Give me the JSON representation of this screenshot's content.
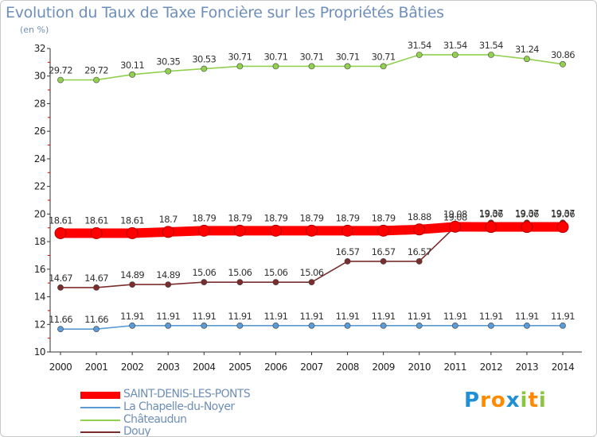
{
  "chart_data": {
    "type": "line",
    "title": "Evolution du Taux de Taxe Foncière sur les Propriétés Bâties",
    "ylabel": "(en %)",
    "xlabel": "",
    "ylim": [
      10,
      32
    ],
    "yticks": [
      "10",
      "12",
      "14",
      "16",
      "18",
      "20",
      "22",
      "24",
      "26",
      "28",
      "30",
      "32"
    ],
    "x": [
      "2000",
      "2001",
      "2002",
      "2003",
      "2004",
      "2005",
      "2006",
      "2007",
      "2008",
      "2009",
      "2010",
      "2011",
      "2012",
      "2013",
      "2014"
    ],
    "series": [
      {
        "name": "SAINT-DENIS-LES-PONTS",
        "color": "#ff0000",
        "values": [
          18.61,
          18.61,
          18.61,
          18.7,
          18.79,
          18.79,
          18.79,
          18.79,
          18.79,
          18.79,
          18.88,
          19.08,
          19.06,
          19.06,
          19.06
        ],
        "labels": [
          "18.61",
          "18.61",
          "18.61",
          "18.7",
          "18.79",
          "18.79",
          "18.79",
          "18.79",
          "18.79",
          "18.79",
          "18.88",
          "19.08",
          "19.06",
          "19.06",
          "19.06"
        ]
      },
      {
        "name": "La Chapelle-du-Noyer",
        "color": "#5b9bd5",
        "values": [
          11.66,
          11.66,
          11.91,
          11.91,
          11.91,
          11.91,
          11.91,
          11.91,
          11.91,
          11.91,
          11.91,
          11.91,
          11.91,
          11.91,
          11.91
        ],
        "labels": [
          "11.66",
          "11.66",
          "11.91",
          "11.91",
          "11.91",
          "11.91",
          "11.91",
          "11.91",
          "11.91",
          "11.91",
          "11.91",
          "11.91",
          "11.91",
          "11.91",
          "11.91"
        ]
      },
      {
        "name": "Châteaudun",
        "color": "#92d050",
        "values": [
          29.72,
          29.72,
          30.11,
          30.35,
          30.53,
          30.71,
          30.71,
          30.71,
          30.71,
          30.71,
          31.54,
          31.54,
          31.54,
          31.24,
          30.86
        ],
        "labels": [
          "29.72",
          "29.72",
          "30.11",
          "30.35",
          "30.53",
          "30.71",
          "30.71",
          "30.71",
          "30.71",
          "30.71",
          "31.54",
          "31.54",
          "31.54",
          "31.24",
          "30.86"
        ]
      },
      {
        "name": "Douy",
        "color": "#7b2c2c",
        "values": [
          14.67,
          14.67,
          14.89,
          14.89,
          15.06,
          15.06,
          15.06,
          15.06,
          16.57,
          16.57,
          16.57,
          19.08,
          19.37,
          19.37,
          19.37
        ],
        "labels": [
          "14.67",
          "14.67",
          "14.89",
          "14.89",
          "15.06",
          "15.06",
          "15.06",
          "15.06",
          "16.57",
          "16.57",
          "16.57",
          "19.08",
          "19.37",
          "19.37",
          "19.37"
        ]
      }
    ],
    "legend_position": "bottom-left",
    "grid": false
  },
  "logo": {
    "text": "Proxiti",
    "letters": [
      {
        "char": "P",
        "color": "#1f8fd6"
      },
      {
        "char": "r",
        "color": "#ff8a00"
      },
      {
        "char": "o",
        "color": "#ff8a00"
      },
      {
        "char": "x",
        "color": "#1f8fd6"
      },
      {
        "char": "i",
        "color": "#8cc63f"
      },
      {
        "char": "t",
        "color": "#ff8a00"
      },
      {
        "char": "i",
        "color": "#8cc63f"
      }
    ]
  }
}
